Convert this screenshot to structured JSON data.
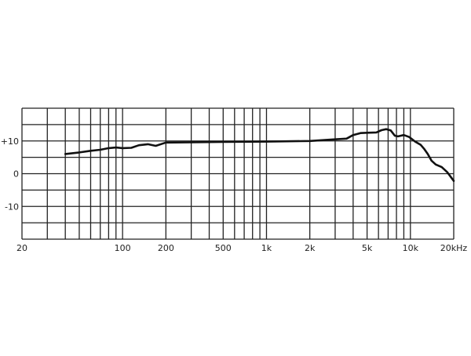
{
  "chart_data": {
    "type": "line",
    "title": "",
    "xlabel": "",
    "ylabel": "",
    "x_scale": "log",
    "xlim": [
      20,
      20000
    ],
    "ylim": [
      -20,
      20
    ],
    "grid": true,
    "x_gridlines": [
      20,
      30,
      40,
      50,
      60,
      70,
      80,
      90,
      100,
      200,
      300,
      400,
      500,
      600,
      700,
      800,
      900,
      1000,
      2000,
      3000,
      4000,
      5000,
      6000,
      7000,
      8000,
      9000,
      10000,
      20000
    ],
    "y_gridlines": [
      -20,
      -15,
      -10,
      -5,
      0,
      5,
      10,
      15,
      20
    ],
    "x_ticks": [
      {
        "value": 20,
        "label": "20"
      },
      {
        "value": 100,
        "label": "100"
      },
      {
        "value": 200,
        "label": "200"
      },
      {
        "value": 500,
        "label": "500"
      },
      {
        "value": 1000,
        "label": "1k"
      },
      {
        "value": 2000,
        "label": "2k"
      },
      {
        "value": 5000,
        "label": "5k"
      },
      {
        "value": 10000,
        "label": "10k"
      },
      {
        "value": 20000,
        "label": "20kHz"
      }
    ],
    "y_ticks": [
      {
        "value": 10,
        "label": "+10"
      },
      {
        "value": 0,
        "label": "0"
      },
      {
        "value": -10,
        "label": "-10"
      }
    ],
    "series": [
      {
        "color": "#111111",
        "x": [
          40,
          50,
          60,
          70,
          80,
          90,
          100,
          115,
          130,
          150,
          170,
          200,
          300,
          500,
          1000,
          2000,
          3000,
          3600,
          4000,
          4500,
          5000,
          5800,
          6300,
          6800,
          7300,
          7800,
          8200,
          9000,
          9800,
          10800,
          11800,
          12500,
          13200,
          14000,
          15000,
          16500,
          18000,
          20000
        ],
        "y": [
          6,
          6.5,
          7,
          7.3,
          7.8,
          8,
          7.8,
          7.9,
          8.7,
          9,
          8.5,
          9.5,
          9.6,
          9.7,
          9.8,
          10,
          10.5,
          10.7,
          11.8,
          12.4,
          12.5,
          12.6,
          13.3,
          13.6,
          13.2,
          11.6,
          11.4,
          11.8,
          11.2,
          9.8,
          8.8,
          7.5,
          6,
          4,
          2.8,
          2,
          0.5,
          -2.2
        ]
      }
    ]
  }
}
